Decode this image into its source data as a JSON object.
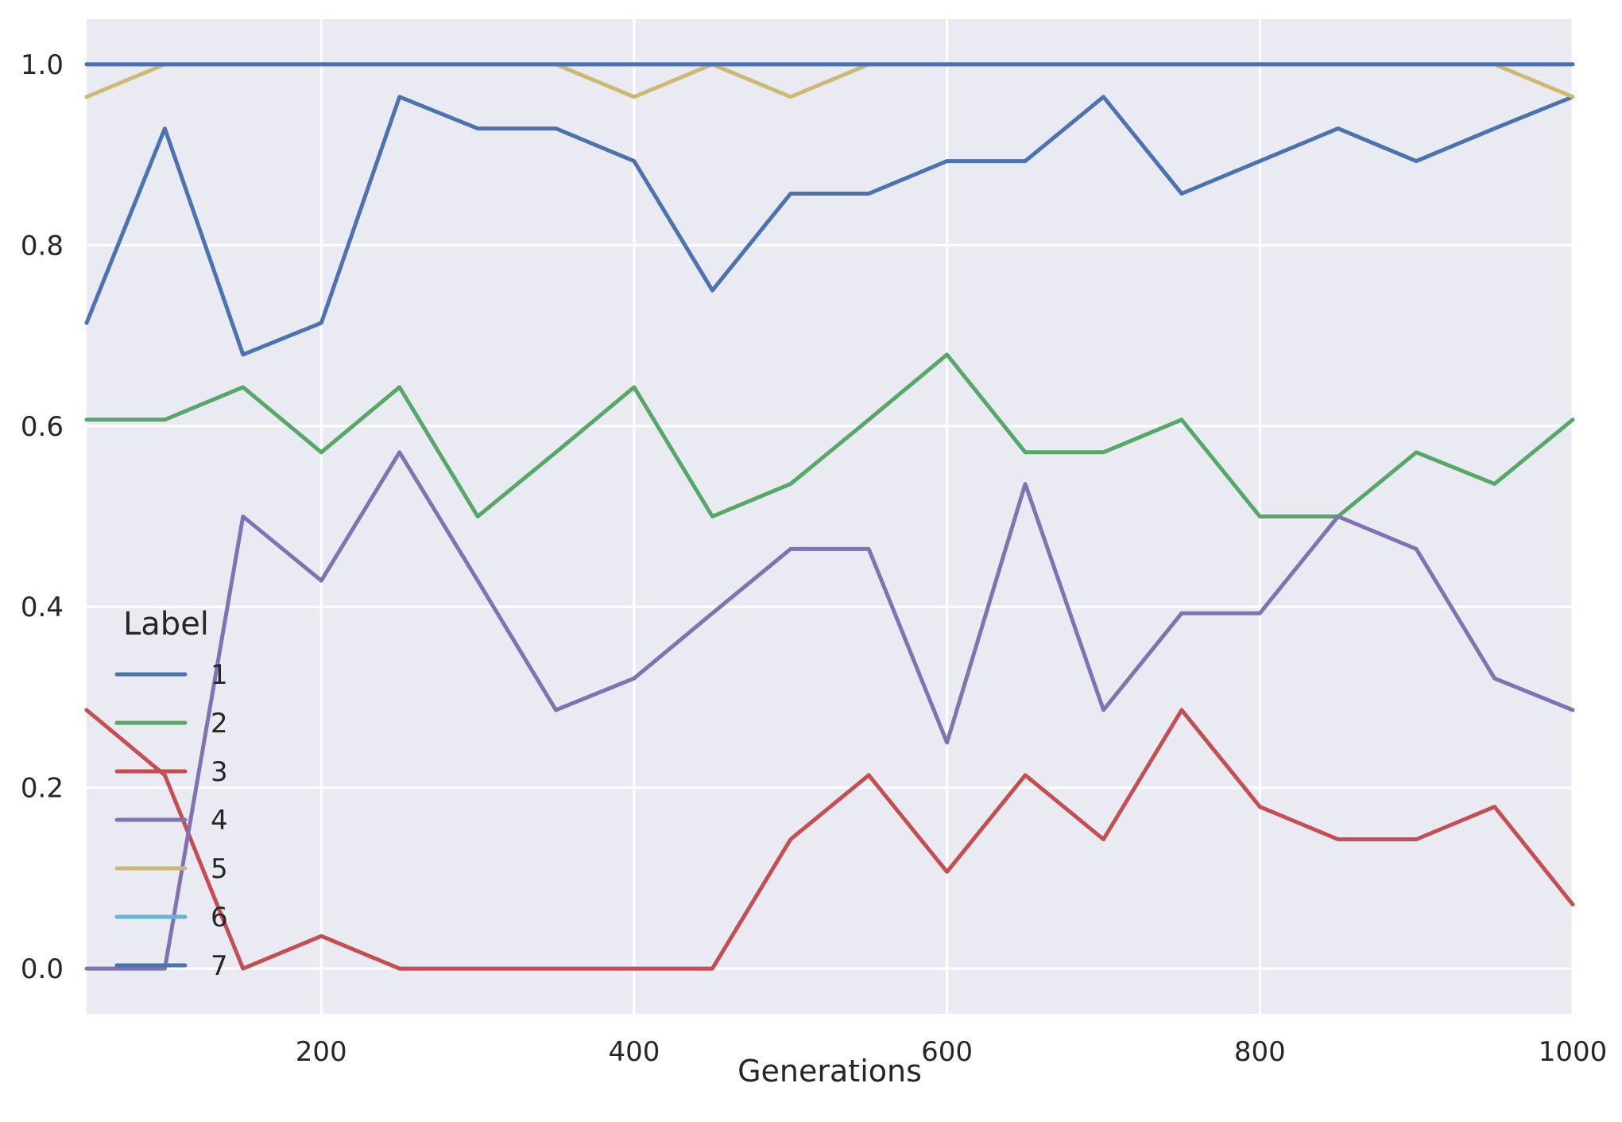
{
  "chart_data": {
    "type": "line",
    "xlabel": "Generations",
    "ylabel": "",
    "xlim": [
      50,
      1000
    ],
    "ylim": [
      -0.05,
      1.05
    ],
    "xticks": [
      200,
      400,
      600,
      800,
      1000
    ],
    "yticks": [
      0.0,
      0.2,
      0.4,
      0.6,
      0.8,
      1.0
    ],
    "xtick_labels": [
      "200",
      "400",
      "600",
      "800",
      "1000"
    ],
    "ytick_labels": [
      "0.0",
      "0.2",
      "0.4",
      "0.6",
      "0.8",
      "1.0"
    ],
    "grid": true,
    "legend": {
      "title": "Label",
      "placement": "center-left"
    },
    "x": [
      50,
      100,
      150,
      200,
      250,
      300,
      350,
      400,
      450,
      500,
      550,
      600,
      650,
      700,
      750,
      800,
      850,
      900,
      950,
      1000
    ],
    "series": [
      {
        "name": "1",
        "color": "#4c72b0",
        "values": [
          0.714,
          0.929,
          0.679,
          0.714,
          0.964,
          0.929,
          0.929,
          0.893,
          0.75,
          0.857,
          0.857,
          0.893,
          0.893,
          0.964,
          0.857,
          0.893,
          0.929,
          0.893,
          0.929,
          0.964
        ]
      },
      {
        "name": "2",
        "color": "#55a868",
        "values": [
          0.607,
          0.607,
          0.643,
          0.571,
          0.643,
          0.5,
          0.571,
          0.643,
          0.5,
          0.536,
          0.607,
          0.679,
          0.571,
          0.571,
          0.607,
          0.5,
          0.5,
          0.571,
          0.536,
          0.607
        ]
      },
      {
        "name": "3",
        "color": "#c44e52",
        "values": [
          0.286,
          0.214,
          0.0,
          0.036,
          0.0,
          0.0,
          0.0,
          0.0,
          0.0,
          0.143,
          0.214,
          0.107,
          0.214,
          0.143,
          0.286,
          0.179,
          0.143,
          0.143,
          0.179,
          0.071
        ]
      },
      {
        "name": "4",
        "color": "#8172b2",
        "values": [
          0.0,
          0.0,
          0.5,
          0.429,
          0.571,
          0.429,
          0.286,
          0.321,
          0.393,
          0.464,
          0.464,
          0.25,
          0.536,
          0.286,
          0.393,
          0.393,
          0.5,
          0.464,
          0.321,
          0.286
        ]
      },
      {
        "name": "5",
        "color": "#ccb974",
        "values": [
          0.964,
          1.0,
          1.0,
          1.0,
          1.0,
          1.0,
          1.0,
          0.964,
          1.0,
          0.964,
          1.0,
          1.0,
          1.0,
          1.0,
          1.0,
          1.0,
          1.0,
          1.0,
          1.0,
          0.964
        ]
      },
      {
        "name": "6",
        "color": "#64b5cd",
        "values": [
          1.0,
          1.0,
          1.0,
          1.0,
          1.0,
          1.0,
          1.0,
          1.0,
          1.0,
          1.0,
          1.0,
          1.0,
          1.0,
          1.0,
          1.0,
          1.0,
          1.0,
          1.0,
          1.0,
          1.0
        ]
      },
      {
        "name": "7",
        "color": "#4c72b0",
        "values": [
          1.0,
          1.0,
          1.0,
          1.0,
          1.0,
          1.0,
          1.0,
          1.0,
          1.0,
          1.0,
          1.0,
          1.0,
          1.0,
          1.0,
          1.0,
          1.0,
          1.0,
          1.0,
          1.0,
          1.0
        ]
      }
    ],
    "colors": {
      "plot_background": "#eaeaf2",
      "grid": "#ffffff"
    }
  }
}
